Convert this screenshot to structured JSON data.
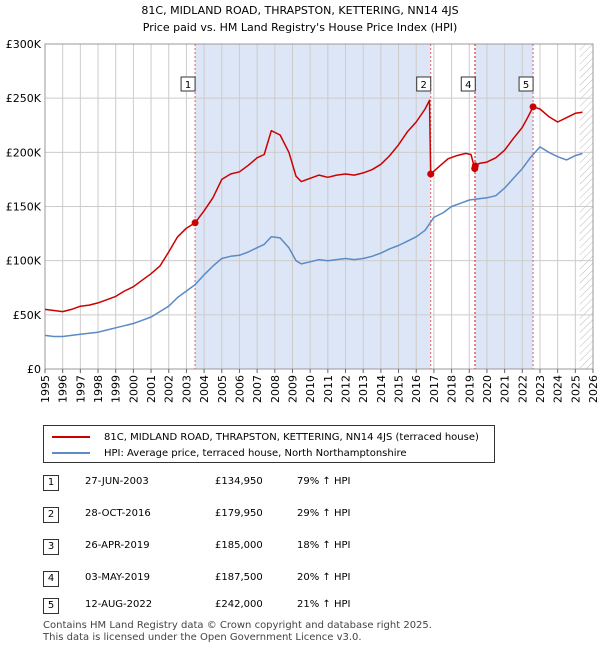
{
  "chart_data": {
    "type": "line",
    "title": "81C, MIDLAND ROAD, THRAPSTON, KETTERING, NN14 4JS",
    "subtitle": "Price paid vs. HM Land Registry's House Price Index (HPI)",
    "xlabel": "",
    "ylabel": "",
    "xlim": [
      1995,
      2026
    ],
    "ylim": [
      0,
      300000
    ],
    "x_ticks": [
      "1995",
      "1996",
      "1997",
      "1998",
      "1999",
      "2000",
      "2001",
      "2002",
      "2003",
      "2004",
      "2005",
      "2006",
      "2007",
      "2008",
      "2009",
      "2010",
      "2011",
      "2012",
      "2013",
      "2014",
      "2015",
      "2016",
      "2017",
      "2018",
      "2019",
      "2020",
      "2021",
      "2022",
      "2023",
      "2024",
      "2025",
      "2026"
    ],
    "y_ticks": [
      {
        "value": 0,
        "label": "£0"
      },
      {
        "value": 50000,
        "label": "£50K"
      },
      {
        "value": 100000,
        "label": "£100K"
      },
      {
        "value": 150000,
        "label": "£150K"
      },
      {
        "value": 200000,
        "label": "£200K"
      },
      {
        "value": 250000,
        "label": "£250K"
      },
      {
        "value": 300000,
        "label": "£300K"
      }
    ],
    "shaded_ranges": [
      [
        2003.5,
        2016.8
      ],
      [
        2019.35,
        2022.6
      ]
    ],
    "hatch_from": 2025.25,
    "colors": {
      "price": "#cc0000",
      "hpi": "#5b8ac5",
      "shade": "#dde6f6",
      "marker_line": "#e06060",
      "grid": "#cccccc"
    },
    "series": [
      {
        "name": "81C, MIDLAND ROAD, THRAPSTON, KETTERING, NN14 4JS (terraced house)",
        "key": "price",
        "x": [
          1995.0,
          1995.5,
          1996.0,
          1996.5,
          1997.0,
          1997.5,
          1998.0,
          1998.5,
          1999.0,
          1999.5,
          2000.0,
          2000.5,
          2001.0,
          2001.5,
          2002.0,
          2002.5,
          2003.0,
          2003.49,
          2004.0,
          2004.5,
          2005.0,
          2005.5,
          2006.0,
          2006.5,
          2007.0,
          2007.4,
          2007.8,
          2008.3,
          2008.8,
          2009.2,
          2009.5,
          2010.0,
          2010.5,
          2011.0,
          2011.5,
          2012.0,
          2012.5,
          2013.0,
          2013.5,
          2014.0,
          2014.5,
          2015.0,
          2015.5,
          2016.0,
          2016.5,
          2016.75,
          2016.82,
          2017.3,
          2017.8,
          2018.3,
          2018.8,
          2019.1,
          2019.31,
          2019.34,
          2019.6,
          2020.0,
          2020.5,
          2021.0,
          2021.5,
          2022.0,
          2022.3,
          2022.61,
          2023.0,
          2023.5,
          2024.0,
          2024.5,
          2025.0,
          2025.4
        ],
        "y": [
          55000,
          54000,
          53000,
          55000,
          58000,
          59000,
          61000,
          64000,
          67000,
          72000,
          76000,
          82000,
          88000,
          95000,
          108000,
          122000,
          130000,
          134950,
          146000,
          158000,
          175000,
          180000,
          182000,
          188000,
          195000,
          198000,
          220000,
          216000,
          200000,
          178000,
          173000,
          176000,
          179000,
          177000,
          179000,
          180000,
          179000,
          181000,
          184000,
          189000,
          197000,
          207000,
          219000,
          228000,
          240000,
          248000,
          179950,
          187000,
          194000,
          197000,
          199000,
          198000,
          185000,
          187500,
          190000,
          191000,
          195000,
          202000,
          213000,
          223000,
          232000,
          242000,
          240000,
          233000,
          228000,
          232000,
          236000,
          237000
        ]
      },
      {
        "name": "HPI: Average price, terraced house, North Northamptonshire",
        "key": "hpi",
        "x": [
          1995.0,
          1995.5,
          1996.0,
          1996.5,
          1997.0,
          1997.5,
          1998.0,
          1998.5,
          1999.0,
          1999.5,
          2000.0,
          2000.5,
          2001.0,
          2001.5,
          2002.0,
          2002.5,
          2003.0,
          2003.5,
          2004.0,
          2004.5,
          2005.0,
          2005.5,
          2006.0,
          2006.5,
          2007.0,
          2007.4,
          2007.8,
          2008.3,
          2008.8,
          2009.2,
          2009.5,
          2010.0,
          2010.5,
          2011.0,
          2011.5,
          2012.0,
          2012.5,
          2013.0,
          2013.5,
          2014.0,
          2014.5,
          2015.0,
          2015.5,
          2016.0,
          2016.5,
          2017.0,
          2017.5,
          2018.0,
          2018.5,
          2019.0,
          2019.5,
          2020.0,
          2020.5,
          2021.0,
          2021.5,
          2022.0,
          2022.5,
          2023.0,
          2023.5,
          2024.0,
          2024.5,
          2025.0,
          2025.4
        ],
        "y": [
          31000,
          30000,
          30000,
          31000,
          32000,
          33000,
          34000,
          36000,
          38000,
          40000,
          42000,
          45000,
          48000,
          53000,
          58000,
          66000,
          72000,
          78000,
          87000,
          95000,
          102000,
          104000,
          105000,
          108000,
          112000,
          115000,
          122000,
          121000,
          112000,
          100000,
          97000,
          99000,
          101000,
          100000,
          101000,
          102000,
          101000,
          102000,
          104000,
          107000,
          111000,
          114000,
          118000,
          122000,
          128000,
          140000,
          144000,
          150000,
          153000,
          156000,
          157000,
          158000,
          160000,
          167000,
          176000,
          185000,
          196000,
          205000,
          200000,
          196000,
          193000,
          197000,
          199000
        ]
      }
    ],
    "sales": [
      {
        "label": "1",
        "x": 2003.49,
        "y": 134950
      },
      {
        "label": "2",
        "x": 2016.82,
        "y": 179950
      },
      {
        "label": "3",
        "x": 2019.31,
        "y": 185000
      },
      {
        "label": "4",
        "x": 2019.34,
        "y": 187500
      },
      {
        "label": "5",
        "x": 2022.61,
        "y": 242000
      }
    ],
    "marker_boxes": [
      {
        "label": "1",
        "x": 2003.49
      },
      {
        "label": "2",
        "x": 2016.82
      },
      {
        "label": "4",
        "x": 2019.34
      },
      {
        "label": "5",
        "x": 2022.61
      }
    ]
  },
  "legend": {
    "price_label": "81C, MIDLAND ROAD, THRAPSTON, KETTERING, NN14 4JS (terraced house)",
    "hpi_label": "HPI: Average price, terraced house, North Northamptonshire"
  },
  "transactions": [
    {
      "num": "1",
      "date": "27-JUN-2003",
      "price": "£134,950",
      "hpi": "79% ↑ HPI"
    },
    {
      "num": "2",
      "date": "28-OCT-2016",
      "price": "£179,950",
      "hpi": "29% ↑ HPI"
    },
    {
      "num": "3",
      "date": "26-APR-2019",
      "price": "£185,000",
      "hpi": "18% ↑ HPI"
    },
    {
      "num": "4",
      "date": "03-MAY-2019",
      "price": "£187,500",
      "hpi": "20% ↑ HPI"
    },
    {
      "num": "5",
      "date": "12-AUG-2022",
      "price": "£242,000",
      "hpi": "21% ↑ HPI"
    }
  ],
  "footer": {
    "line1": "Contains HM Land Registry data © Crown copyright and database right 2025.",
    "line2": "This data is licensed under the Open Government Licence v3.0."
  }
}
